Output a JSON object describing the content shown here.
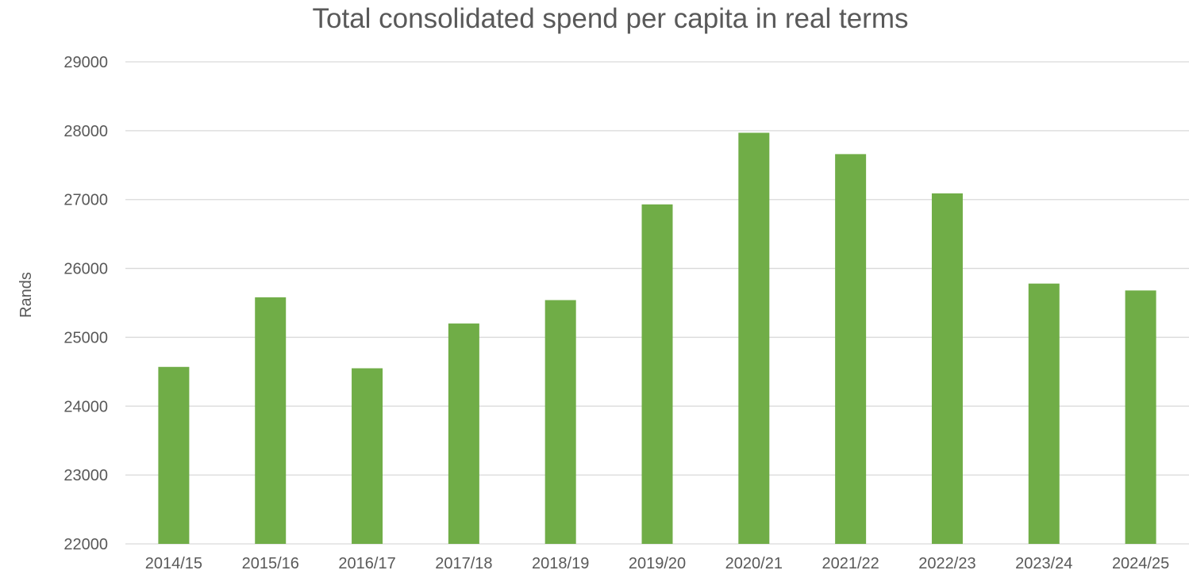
{
  "chart_data": {
    "type": "bar",
    "title": "Total consolidated spend per capita in real terms",
    "xlabel": "",
    "ylabel": "Rands",
    "categories": [
      "2014/15",
      "2015/16",
      "2016/17",
      "2017/18",
      "2018/19",
      "2019/20",
      "2020/21",
      "2021/22",
      "2022/23",
      "2023/24",
      "2024/25"
    ],
    "series": [
      {
        "values": [
          24570,
          25580,
          24550,
          25200,
          25540,
          26930,
          27970,
          27660,
          27090,
          25780,
          25680
        ]
      }
    ],
    "ylim": [
      22000,
      29000
    ],
    "yticks": [
      "22000",
      "23000",
      "24000",
      "25000",
      "26000",
      "27000",
      "28000",
      "29000"
    ],
    "grid": true,
    "legend": "none",
    "colors": {
      "bar": "#70AD47",
      "grid": "#D9D9D9",
      "text": "#595959"
    }
  }
}
